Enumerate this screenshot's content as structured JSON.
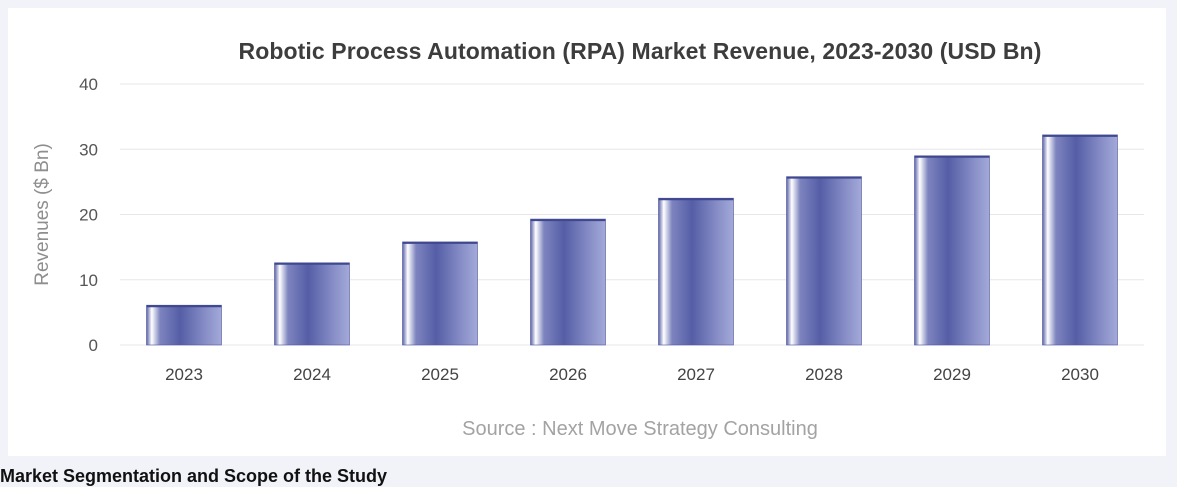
{
  "chart_data": {
    "type": "bar",
    "title": "Robotic Process Automation (RPA) Market Revenue, 2023-2030 (USD Bn)",
    "xlabel": "",
    "ylabel": "Revenues ($ Bn)",
    "categories": [
      "2023",
      "2024",
      "2025",
      "2026",
      "2027",
      "2028",
      "2029",
      "2030"
    ],
    "values": [
      6.1,
      12.6,
      15.8,
      19.3,
      22.5,
      25.8,
      29.0,
      32.2
    ],
    "ylim": [
      0,
      40
    ],
    "yticks": [
      0,
      10,
      20,
      30,
      40
    ],
    "grid": true,
    "legend": "none",
    "bar_color": "#5b63a8",
    "source": "Source : Next Move Strategy Consulting"
  },
  "below_text": "Market Segmentation and Scope of the Study"
}
